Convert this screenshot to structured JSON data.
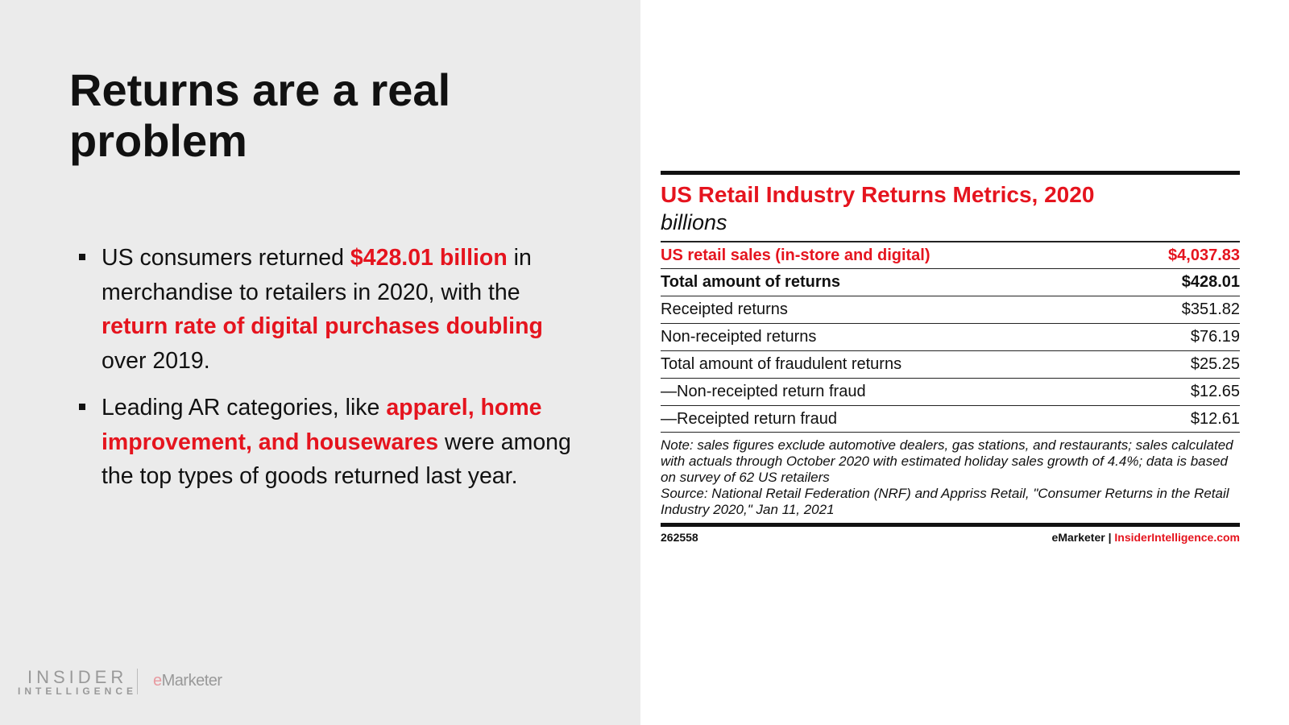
{
  "slide": {
    "title": "Returns are a real problem",
    "bullets": [
      [
        {
          "t": "US consumers returned ",
          "red": false
        },
        {
          "t": "$428.01 billion",
          "red": true
        },
        {
          "t": " in merchandise to retailers in 2020, with the ",
          "red": false
        },
        {
          "t": "return rate of digital purchases doubling",
          "red": true
        },
        {
          "t": " over 2019.",
          "red": false
        }
      ],
      [
        {
          "t": "Leading AR categories, like ",
          "red": false
        },
        {
          "t": "apparel, home improvement, and housewares",
          "red": true
        },
        {
          "t": " were among the top types of goods returned last year.",
          "red": false
        }
      ]
    ]
  },
  "logo": {
    "insider": "INSIDER",
    "intelligence": "INTELLIGENCE",
    "emarketer_e": "e",
    "emarketer_rest": "Marketer"
  },
  "table": {
    "title": "US Retail Industry Returns Metrics, 2020",
    "unit": "billions",
    "rows": [
      {
        "label": "US retail sales (in-store and digital)",
        "value": "$4,037.83"
      },
      {
        "label": "Total amount of returns",
        "value": "$428.01"
      },
      {
        "label": "Receipted returns",
        "value": "$351.82"
      },
      {
        "label": "Non-receipted returns",
        "value": "$76.19"
      },
      {
        "label": "Total amount of fraudulent returns",
        "value": "$25.25"
      },
      {
        "label": "—Non-receipted return fraud",
        "value": "$12.65"
      },
      {
        "label": "—Receipted return fraud",
        "value": "$12.61"
      }
    ],
    "note": "Note: sales figures exclude automotive dealers, gas stations, and restaurants; sales calculated with actuals through October 2020 with estimated holiday sales growth of 4.4%; data is based on survey of 62 US retailers",
    "source": "Source: National Retail Federation (NRF) and Appriss Retail, \"Consumer Returns in the Retail Industry 2020,\" Jan 11, 2021",
    "chart_id": "262558",
    "footer_brand": "eMarketer",
    "footer_sep": "|",
    "footer_link": "InsiderIntelligence.com"
  },
  "colors": {
    "accent": "#e5141e",
    "left_bg": "#ebebeb"
  }
}
